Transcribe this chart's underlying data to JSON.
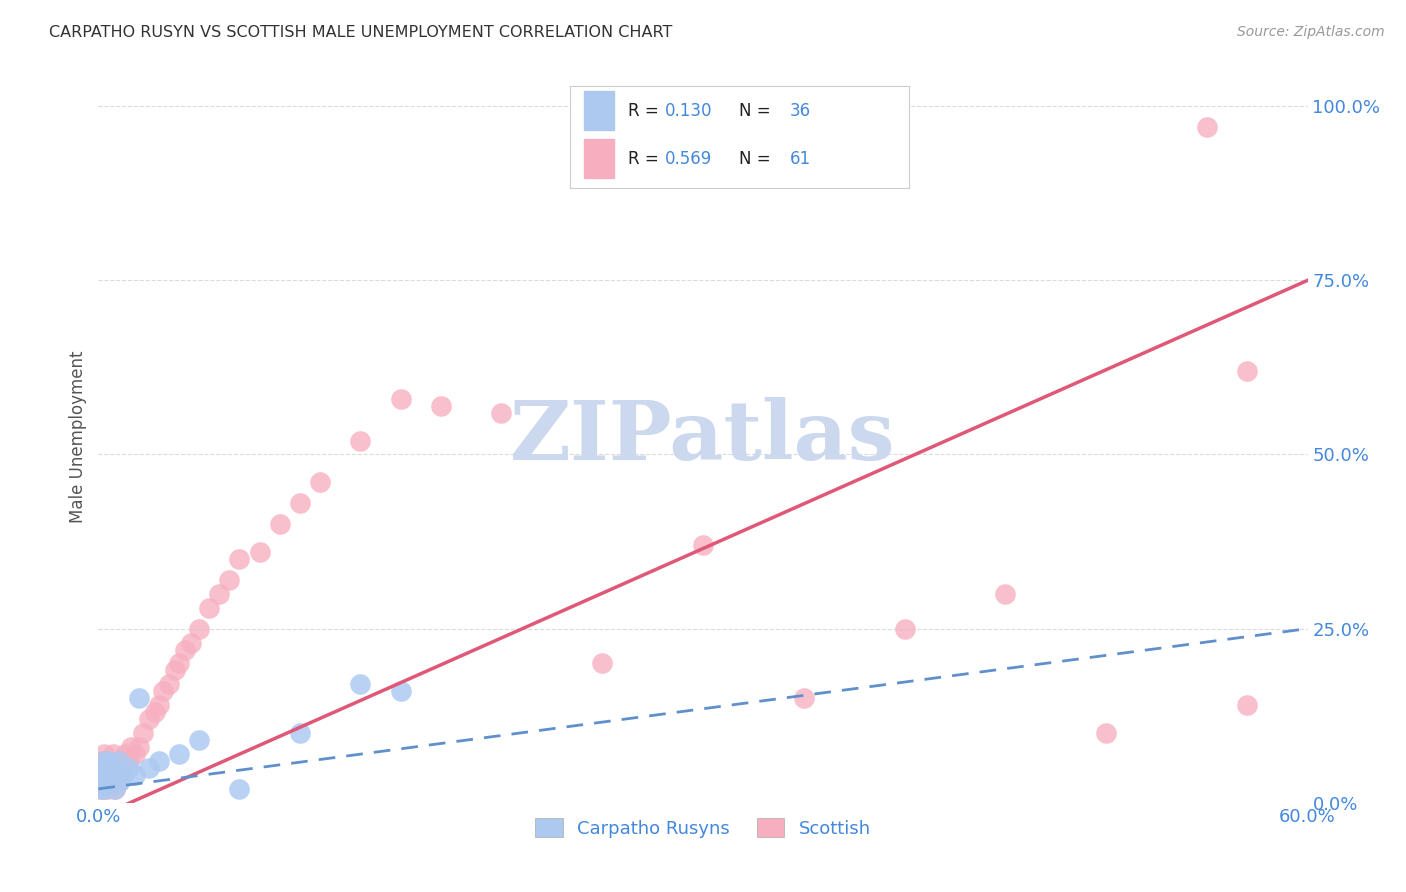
{
  "title": "CARPATHO RUSYN VS SCOTTISH MALE UNEMPLOYMENT CORRELATION CHART",
  "source": "Source: ZipAtlas.com",
  "ylabel": "Male Unemployment",
  "xlim": [
    0.0,
    0.6
  ],
  "ylim": [
    0.0,
    1.05
  ],
  "ytick_labels": [
    "0.0%",
    "25.0%",
    "50.0%",
    "75.0%",
    "100.0%"
  ],
  "ytick_values": [
    0.0,
    0.25,
    0.5,
    0.75,
    1.0
  ],
  "legend_entries": [
    {
      "label": "Carpatho Rusyns",
      "color": "#adc9f0",
      "R": "0.130",
      "N": "36"
    },
    {
      "label": "Scottish",
      "color": "#f7afc0",
      "R": "0.569",
      "N": "61"
    }
  ],
  "carpatho_color": "#adc9f0",
  "scottish_color": "#f7afc0",
  "carpatho_line_color": "#6090cc",
  "scottish_line_color": "#e05878",
  "background_color": "#ffffff",
  "grid_color": "#d8d8d8",
  "title_color": "#333333",
  "axis_label_color": "#555555",
  "tick_label_color": "#4488dd",
  "watermark_color": "#ccd8ee",
  "scottish_trend_x0": 0.0,
  "scottish_trend_y0": -0.02,
  "scottish_trend_x1": 0.6,
  "scottish_trend_y1": 0.75,
  "carpatho_trend_x0": 0.0,
  "carpatho_trend_y0": 0.02,
  "carpatho_trend_x1": 0.6,
  "carpatho_trend_y1": 0.25,
  "carpatho_x": [
    0.001,
    0.001,
    0.002,
    0.002,
    0.002,
    0.003,
    0.003,
    0.003,
    0.003,
    0.004,
    0.004,
    0.004,
    0.005,
    0.005,
    0.005,
    0.006,
    0.006,
    0.007,
    0.007,
    0.008,
    0.008,
    0.009,
    0.01,
    0.01,
    0.012,
    0.015,
    0.018,
    0.02,
    0.025,
    0.03,
    0.04,
    0.05,
    0.07,
    0.1,
    0.13,
    0.15
  ],
  "carpatho_y": [
    0.03,
    0.04,
    0.02,
    0.035,
    0.05,
    0.02,
    0.03,
    0.04,
    0.06,
    0.025,
    0.04,
    0.05,
    0.03,
    0.04,
    0.06,
    0.03,
    0.05,
    0.03,
    0.05,
    0.02,
    0.04,
    0.04,
    0.03,
    0.06,
    0.04,
    0.05,
    0.04,
    0.15,
    0.05,
    0.06,
    0.07,
    0.09,
    0.02,
    0.1,
    0.17,
    0.16
  ],
  "scottish_x": [
    0.001,
    0.001,
    0.002,
    0.002,
    0.002,
    0.003,
    0.003,
    0.003,
    0.004,
    0.004,
    0.005,
    0.005,
    0.005,
    0.006,
    0.006,
    0.007,
    0.007,
    0.008,
    0.008,
    0.009,
    0.01,
    0.01,
    0.011,
    0.012,
    0.013,
    0.015,
    0.016,
    0.018,
    0.02,
    0.022,
    0.025,
    0.028,
    0.03,
    0.032,
    0.035,
    0.038,
    0.04,
    0.043,
    0.046,
    0.05,
    0.055,
    0.06,
    0.065,
    0.07,
    0.08,
    0.09,
    0.1,
    0.11,
    0.13,
    0.15,
    0.17,
    0.2,
    0.25,
    0.3,
    0.35,
    0.4,
    0.45,
    0.5,
    0.55,
    0.57,
    0.57
  ],
  "scottish_y": [
    0.02,
    0.04,
    0.03,
    0.05,
    0.06,
    0.02,
    0.04,
    0.07,
    0.03,
    0.05,
    0.02,
    0.04,
    0.06,
    0.03,
    0.05,
    0.03,
    0.07,
    0.02,
    0.05,
    0.04,
    0.03,
    0.06,
    0.05,
    0.04,
    0.07,
    0.06,
    0.08,
    0.07,
    0.08,
    0.1,
    0.12,
    0.13,
    0.14,
    0.16,
    0.17,
    0.19,
    0.2,
    0.22,
    0.23,
    0.25,
    0.28,
    0.3,
    0.32,
    0.35,
    0.36,
    0.4,
    0.43,
    0.46,
    0.52,
    0.58,
    0.57,
    0.56,
    0.2,
    0.37,
    0.15,
    0.25,
    0.3,
    0.1,
    0.97,
    0.14,
    0.62
  ]
}
